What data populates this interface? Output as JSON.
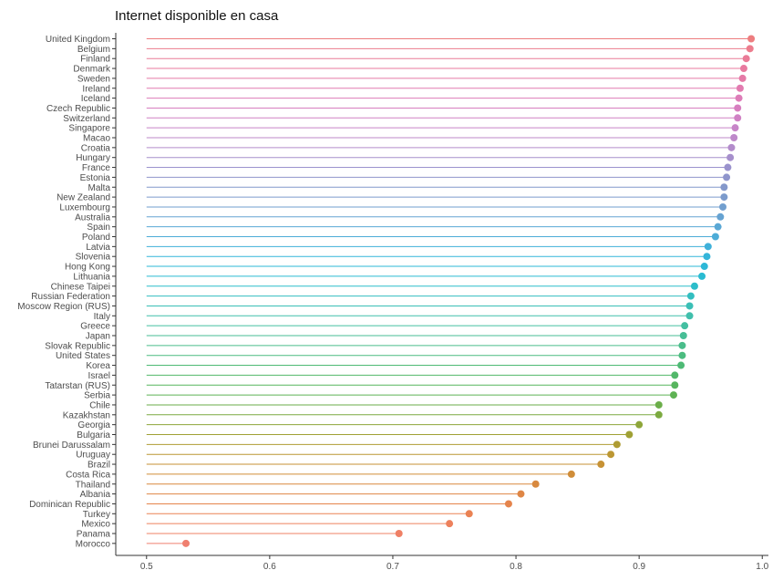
{
  "chart_data": {
    "type": "lollipop",
    "title": "Internet disponible en casa",
    "xlabel": "",
    "ylabel": "",
    "xlim": [
      0.475,
      1.005
    ],
    "x_ticks": [
      0.5,
      0.6,
      0.7,
      0.8,
      0.9,
      1.0
    ],
    "x_tick_labels": [
      "0.5",
      "0.6",
      "0.7",
      "0.8",
      "0.9",
      "1.0"
    ],
    "baseline": 0.5,
    "grid": false,
    "legend": "none",
    "categories": [
      "United Kingdom",
      "Belgium",
      "Finland",
      "Denmark",
      "Sweden",
      "Ireland",
      "Iceland",
      "Czech Republic",
      "Switzerland",
      "Singapore",
      "Macao",
      "Croatia",
      "Hungary",
      "France",
      "Estonia",
      "Malta",
      "New Zealand",
      "Luxembourg",
      "Australia",
      "Spain",
      "Poland",
      "Latvia",
      "Slovenia",
      "Hong Kong",
      "Lithuania",
      "Chinese Taipei",
      "Russian Federation",
      "Moscow Region (RUS)",
      "Italy",
      "Greece",
      "Japan",
      "Slovak Republic",
      "United States",
      "Korea",
      "Israel",
      "Tatarstan (RUS)",
      "Serbia",
      "Chile",
      "Kazakhstan",
      "Georgia",
      "Bulgaria",
      "Brunei Darussalam",
      "Uruguay",
      "Brazil",
      "Costa Rica",
      "Thailand",
      "Albania",
      "Dominican Republic",
      "Turkey",
      "Mexico",
      "Panama",
      "Morocco"
    ],
    "values": [
      0.991,
      0.99,
      0.987,
      0.985,
      0.984,
      0.982,
      0.981,
      0.98,
      0.98,
      0.978,
      0.977,
      0.975,
      0.974,
      0.972,
      0.971,
      0.969,
      0.969,
      0.968,
      0.966,
      0.964,
      0.962,
      0.956,
      0.955,
      0.953,
      0.951,
      0.945,
      0.942,
      0.941,
      0.941,
      0.937,
      0.936,
      0.935,
      0.935,
      0.934,
      0.929,
      0.929,
      0.928,
      0.916,
      0.916,
      0.9,
      0.892,
      0.882,
      0.877,
      0.869,
      0.845,
      0.816,
      0.804,
      0.794,
      0.762,
      0.746,
      0.705,
      0.532
    ],
    "colors": [
      "#ED7D7F",
      "#EC7C8D",
      "#EA7B97",
      "#E87A9F",
      "#E57AA7",
      "#E27BB0",
      "#DD7CB8",
      "#D77EBF",
      "#D081C4",
      "#C785C8",
      "#BE89CA",
      "#B38CCB",
      "#A68FCC",
      "#9A92CD",
      "#8F95CC",
      "#8498CB",
      "#7C9BCC",
      "#729FCF",
      "#66A3D2",
      "#5AA8D5",
      "#4DACD7",
      "#3FB1DA",
      "#34B5DA",
      "#2DB8D7",
      "#2ABBD2",
      "#2CBDCA",
      "#33BEC0",
      "#3ABFB6",
      "#40BFAC",
      "#44BFA1",
      "#47BE96",
      "#4ABD8B",
      "#4CBC80",
      "#4EBA75",
      "#52B86A",
      "#57B55F",
      "#5EB254",
      "#6BAE49",
      "#7CAA40",
      "#8EA63A",
      "#A0A135",
      "#AF9C33",
      "#BC9733",
      "#C79235",
      "#D08D39",
      "#D8893F",
      "#DF8645",
      "#E5844C",
      "#EA8253",
      "#ED815C",
      "#EF8065",
      "#EF7F6F"
    ]
  }
}
